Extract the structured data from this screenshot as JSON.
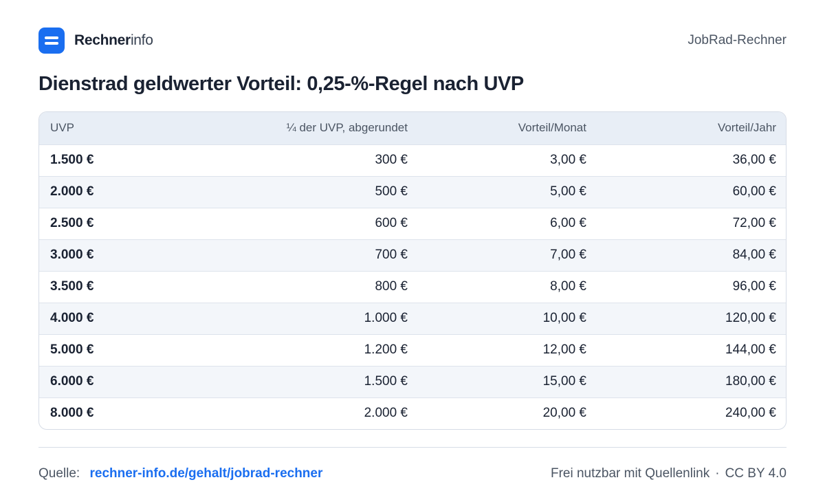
{
  "header": {
    "brand_strong": "Rechner",
    "brand_light": "info",
    "logo_icon": "menu-bars-icon",
    "right_label": "JobRad-Rechner",
    "accent": "#1a6ef0"
  },
  "title": "Dienstrad geldwerter Vorteil: 0,25-%-Regel nach UVP",
  "table": {
    "columns": [
      "UVP",
      "¼ der UVP, abgerundet",
      "Vorteil/Monat",
      "Vorteil/Jahr"
    ],
    "rows": [
      [
        "1.500 €",
        "300 €",
        "3,00 €",
        "36,00 €"
      ],
      [
        "2.000 €",
        "500 €",
        "5,00 €",
        "60,00 €"
      ],
      [
        "2.500 €",
        "600 €",
        "6,00 €",
        "72,00 €"
      ],
      [
        "3.000 €",
        "700 €",
        "7,00 €",
        "84,00 €"
      ],
      [
        "3.500 €",
        "800 €",
        "8,00 €",
        "96,00 €"
      ],
      [
        "4.000 €",
        "1.000 €",
        "10,00 €",
        "120,00 €"
      ],
      [
        "5.000 €",
        "1.200 €",
        "12,00 €",
        "144,00 €"
      ],
      [
        "6.000 €",
        "1.500 €",
        "15,00 €",
        "180,00 €"
      ],
      [
        "8.000 €",
        "2.000 €",
        "20,00 €",
        "240,00 €"
      ]
    ]
  },
  "footer": {
    "source_label": "Quelle:",
    "source_link": "rechner-info.de/gehalt/jobrad-rechner",
    "license_text": "Frei nutzbar mit Quellenlink",
    "separator": "·",
    "license": "CC BY 4.0"
  }
}
